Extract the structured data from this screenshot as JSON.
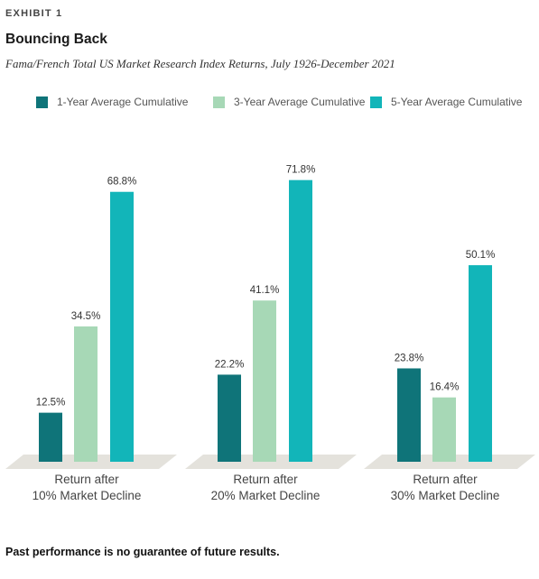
{
  "header": {
    "exhibit": "EXHIBIT 1",
    "title": "Bouncing Back",
    "subtitle": "Fama/French Total US Market Research Index Returns, July 1926-December 2021"
  },
  "footnote": "Past performance is no guarantee of future results.",
  "colors": {
    "series1": "#0f7479",
    "series2": "#a7d8b6",
    "series3": "#12b5b9",
    "floor": "#e4e2dc"
  },
  "chart_data": {
    "type": "bar",
    "categories": [
      [
        "Return after",
        "10% Market Decline"
      ],
      [
        "Return after",
        "20% Market Decline"
      ],
      [
        "Return after",
        "30% Market Decline"
      ]
    ],
    "series": [
      {
        "name": "1-Year Average Cumulative",
        "values": [
          12.5,
          22.2,
          23.8
        ],
        "labels": [
          "12.5%",
          "22.2%",
          "23.8%"
        ]
      },
      {
        "name": "3-Year Average Cumulative",
        "values": [
          34.5,
          41.1,
          16.4
        ],
        "labels": [
          "34.5%",
          "41.1%",
          "16.4%"
        ]
      },
      {
        "name": "5-Year Average Cumulative",
        "values": [
          68.8,
          71.8,
          50.1
        ],
        "labels": [
          "68.8%",
          "71.8%",
          "50.1%"
        ]
      }
    ],
    "ylim": [
      0,
      75
    ],
    "legend_position": "top",
    "grid": false
  }
}
